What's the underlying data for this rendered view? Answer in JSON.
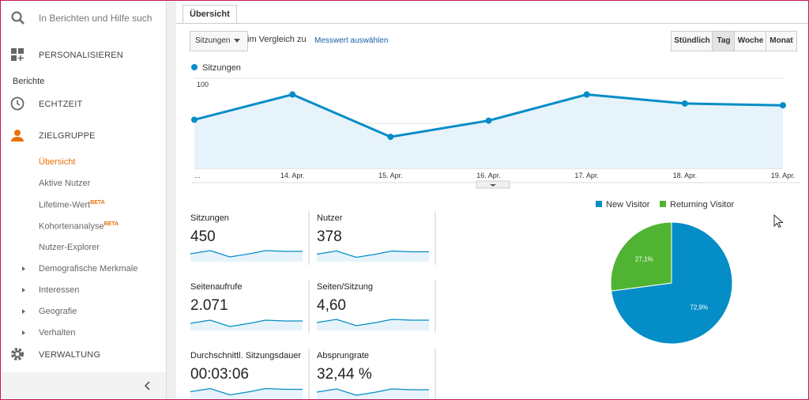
{
  "sidebar": {
    "search": "In Berichten und Hilfe such",
    "personalize": "PERSONALISIEREN",
    "reports": "Berichte",
    "realtime": "ECHTZEIT",
    "audience": "ZIELGRUPPE",
    "audience_items": [
      {
        "label": "Übersicht"
      },
      {
        "label": "Aktive Nutzer"
      },
      {
        "label": "Lifetime-Wert",
        "badge": "BETA"
      },
      {
        "label": "Kohortenanalyse",
        "badge": "BETA"
      },
      {
        "label": "Nutzer-Explorer"
      }
    ],
    "groups": [
      "Demografische Merkmale",
      "Interessen",
      "Geografie",
      "Verhalten"
    ],
    "admin": "VERWALTUNG"
  },
  "tab": "Übersicht",
  "toolbar": {
    "metric": "Sitzungen",
    "compare": "im Vergleich zu",
    "select": "Messwert auswählen",
    "periods": [
      "Stündlich",
      "Tag",
      "Woche",
      "Monat"
    ],
    "active_period": 1
  },
  "chart_data": [
    {
      "type": "line",
      "categories": [
        "...",
        "14. Apr.",
        "15. Apr.",
        "16. Apr.",
        "17. Apr.",
        "18. Apr.",
        "19. Apr."
      ],
      "series": [
        {
          "name": "Sitzungen",
          "color": "#058dc7",
          "values": [
            54,
            82,
            35,
            53,
            82,
            72,
            70
          ]
        }
      ],
      "ylim": [
        0,
        100
      ],
      "yticks": [
        50,
        100
      ],
      "grid": true
    },
    {
      "type": "pie",
      "categories": [
        "New Visitor",
        "Returning Visitor"
      ],
      "values": [
        72.9,
        27.1
      ],
      "value_labels": [
        "72,9%",
        "27,1%"
      ],
      "colors": [
        "#058dc7",
        "#50b432"
      ]
    }
  ],
  "metrics": [
    {
      "label": "Sitzungen",
      "value": "450"
    },
    {
      "label": "Nutzer",
      "value": "378"
    },
    {
      "label": "Seitenaufrufe",
      "value": "2.071"
    },
    {
      "label": "Seiten/Sitzung",
      "value": "4,60"
    },
    {
      "label": "Durchschnittl. Sitzungsdauer",
      "value": "00:03:06"
    },
    {
      "label": "Absprungrate",
      "value": "32,44 %"
    }
  ]
}
